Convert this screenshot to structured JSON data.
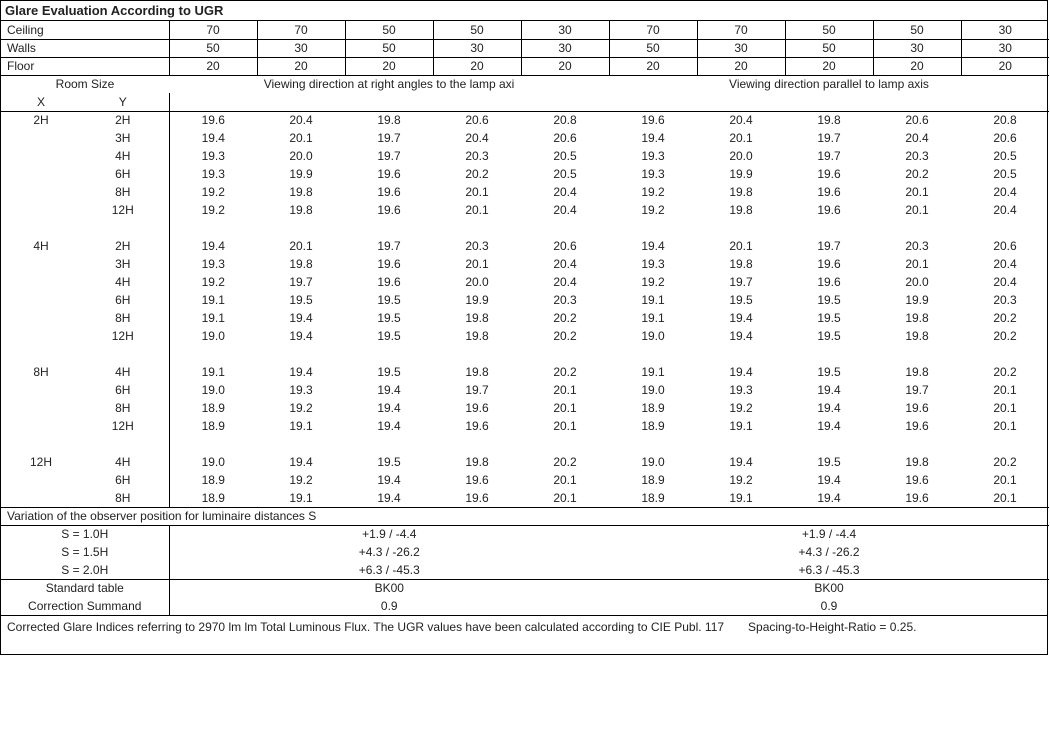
{
  "title": "Glare Evaluation According to UGR",
  "header_labels": {
    "ceiling": "Ceiling",
    "walls": "Walls",
    "floor": "Floor"
  },
  "ceiling": [
    "70",
    "70",
    "50",
    "50",
    "30",
    "70",
    "70",
    "50",
    "50",
    "30"
  ],
  "walls": [
    "50",
    "30",
    "50",
    "30",
    "30",
    "50",
    "30",
    "50",
    "30",
    "30"
  ],
  "floor": [
    "20",
    "20",
    "20",
    "20",
    "20",
    "20",
    "20",
    "20",
    "20",
    "20"
  ],
  "room_size_label": "Room Size",
  "x_label": "X",
  "y_label": "Y",
  "dir_right": "Viewing direction at right angles to the lamp axi",
  "dir_parallel": "Viewing direction parallel to lamp axis",
  "groups": [
    {
      "x": "2H",
      "rows": [
        {
          "y": "2H",
          "v": [
            "19.6",
            "20.4",
            "19.8",
            "20.6",
            "20.8",
            "19.6",
            "20.4",
            "19.8",
            "20.6",
            "20.8"
          ]
        },
        {
          "y": "3H",
          "v": [
            "19.4",
            "20.1",
            "19.7",
            "20.4",
            "20.6",
            "19.4",
            "20.1",
            "19.7",
            "20.4",
            "20.6"
          ]
        },
        {
          "y": "4H",
          "v": [
            "19.3",
            "20.0",
            "19.7",
            "20.3",
            "20.5",
            "19.3",
            "20.0",
            "19.7",
            "20.3",
            "20.5"
          ]
        },
        {
          "y": "6H",
          "v": [
            "19.3",
            "19.9",
            "19.6",
            "20.2",
            "20.5",
            "19.3",
            "19.9",
            "19.6",
            "20.2",
            "20.5"
          ]
        },
        {
          "y": "8H",
          "v": [
            "19.2",
            "19.8",
            "19.6",
            "20.1",
            "20.4",
            "19.2",
            "19.8",
            "19.6",
            "20.1",
            "20.4"
          ]
        },
        {
          "y": "12H",
          "v": [
            "19.2",
            "19.8",
            "19.6",
            "20.1",
            "20.4",
            "19.2",
            "19.8",
            "19.6",
            "20.1",
            "20.4"
          ]
        }
      ]
    },
    {
      "x": "4H",
      "rows": [
        {
          "y": "2H",
          "v": [
            "19.4",
            "20.1",
            "19.7",
            "20.3",
            "20.6",
            "19.4",
            "20.1",
            "19.7",
            "20.3",
            "20.6"
          ]
        },
        {
          "y": "3H",
          "v": [
            "19.3",
            "19.8",
            "19.6",
            "20.1",
            "20.4",
            "19.3",
            "19.8",
            "19.6",
            "20.1",
            "20.4"
          ]
        },
        {
          "y": "4H",
          "v": [
            "19.2",
            "19.7",
            "19.6",
            "20.0",
            "20.4",
            "19.2",
            "19.7",
            "19.6",
            "20.0",
            "20.4"
          ]
        },
        {
          "y": "6H",
          "v": [
            "19.1",
            "19.5",
            "19.5",
            "19.9",
            "20.3",
            "19.1",
            "19.5",
            "19.5",
            "19.9",
            "20.3"
          ]
        },
        {
          "y": "8H",
          "v": [
            "19.1",
            "19.4",
            "19.5",
            "19.8",
            "20.2",
            "19.1",
            "19.4",
            "19.5",
            "19.8",
            "20.2"
          ]
        },
        {
          "y": "12H",
          "v": [
            "19.0",
            "19.4",
            "19.5",
            "19.8",
            "20.2",
            "19.0",
            "19.4",
            "19.5",
            "19.8",
            "20.2"
          ]
        }
      ]
    },
    {
      "x": "8H",
      "rows": [
        {
          "y": "4H",
          "v": [
            "19.1",
            "19.4",
            "19.5",
            "19.8",
            "20.2",
            "19.1",
            "19.4",
            "19.5",
            "19.8",
            "20.2"
          ]
        },
        {
          "y": "6H",
          "v": [
            "19.0",
            "19.3",
            "19.4",
            "19.7",
            "20.1",
            "19.0",
            "19.3",
            "19.4",
            "19.7",
            "20.1"
          ]
        },
        {
          "y": "8H",
          "v": [
            "18.9",
            "19.2",
            "19.4",
            "19.6",
            "20.1",
            "18.9",
            "19.2",
            "19.4",
            "19.6",
            "20.1"
          ]
        },
        {
          "y": "12H",
          "v": [
            "18.9",
            "19.1",
            "19.4",
            "19.6",
            "20.1",
            "18.9",
            "19.1",
            "19.4",
            "19.6",
            "20.1"
          ]
        }
      ]
    },
    {
      "x": "12H",
      "rows": [
        {
          "y": "4H",
          "v": [
            "19.0",
            "19.4",
            "19.5",
            "19.8",
            "20.2",
            "19.0",
            "19.4",
            "19.5",
            "19.8",
            "20.2"
          ]
        },
        {
          "y": "6H",
          "v": [
            "18.9",
            "19.2",
            "19.4",
            "19.6",
            "20.1",
            "18.9",
            "19.2",
            "19.4",
            "19.6",
            "20.1"
          ]
        },
        {
          "y": "8H",
          "v": [
            "18.9",
            "19.1",
            "19.4",
            "19.6",
            "20.1",
            "18.9",
            "19.1",
            "19.4",
            "19.6",
            "20.1"
          ]
        }
      ]
    }
  ],
  "variation_title": "Variation of the observer position for luminaire distances S",
  "variation": [
    {
      "s": "S = 1.0H",
      "a": "+1.9 / -4.4",
      "b": "+1.9 / -4.4"
    },
    {
      "s": "S = 1.5H",
      "a": "+4.3 / -26.2",
      "b": "+4.3 / -26.2"
    },
    {
      "s": "S = 2.0H",
      "a": "+6.3 / -45.3",
      "b": "+6.3 / -45.3"
    }
  ],
  "std_table_label": "Standard table",
  "correction_label": "Correction Summand",
  "std_left": "BK00",
  "std_right": "BK00",
  "corr_left": "0.9",
  "corr_right": "0.9",
  "footer": "Corrected Glare Indices referring to 2970 lm lm Total Luminous Flux. The UGR values have been calculated according to CIE Publ. 117  Spacing-to-Height-Ratio = 0.25."
}
